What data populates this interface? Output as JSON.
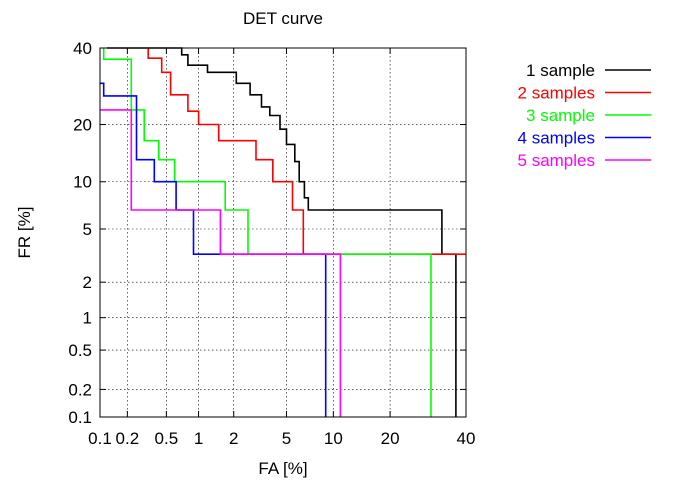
{
  "chart_data": {
    "type": "line",
    "title": "DET curve",
    "xlabel": "FA [%]",
    "ylabel": "FR [%]",
    "x_scale": "probit",
    "y_scale": "probit",
    "xlim": [
      0.1,
      40
    ],
    "ylim": [
      0.1,
      40
    ],
    "x_ticks": [
      0.1,
      0.2,
      0.5,
      1,
      2,
      5,
      10,
      20,
      40
    ],
    "x_tick_labels": [
      "0.1",
      "0.2",
      "0.5",
      "1",
      "2",
      "5",
      "10",
      "20",
      "40"
    ],
    "y_ticks": [
      0.1,
      0.2,
      0.5,
      1,
      2,
      5,
      10,
      20,
      40
    ],
    "y_tick_labels": [
      "0.1",
      "0.2",
      "0.5",
      "1",
      "2",
      "5",
      "10",
      "20",
      "40"
    ],
    "grid": true,
    "legend_position": "outside-right",
    "series": [
      {
        "name": "1 sample",
        "color": "#000000",
        "x": [
          0.12,
          0.7,
          0.7,
          0.8,
          0.8,
          1.2,
          1.2,
          2.1,
          2.1,
          2.7,
          2.7,
          3.3,
          3.3,
          3.8,
          3.8,
          4.5,
          4.5,
          5.0,
          5.0,
          5.7,
          5.7,
          6.1,
          6.1,
          6.6,
          6.6,
          7.0,
          7.0,
          33.0,
          33.0,
          37.0,
          37.0
        ],
        "y": [
          40,
          40,
          38,
          38,
          35,
          35,
          33,
          33,
          30,
          30,
          27,
          27,
          24,
          24,
          22,
          22,
          19,
          19,
          16,
          16,
          13,
          13,
          10,
          10,
          8,
          8,
          6.7,
          6.7,
          3.3,
          3.3,
          0.1
        ]
      },
      {
        "name": "2 samples",
        "color": "#ff0000",
        "x": [
          0.33,
          0.33,
          0.45,
          0.45,
          0.55,
          0.55,
          0.8,
          0.8,
          1.0,
          1.0,
          1.5,
          1.5,
          3.0,
          3.0,
          4.0,
          4.0,
          5.5,
          5.5,
          6.5,
          6.5,
          40
        ],
        "y": [
          40,
          37,
          37,
          33,
          33,
          27,
          27,
          23,
          23,
          20,
          20,
          16.7,
          16.7,
          13.3,
          13.3,
          10,
          10,
          6.7,
          6.7,
          3.3,
          3.3
        ]
      },
      {
        "name": "3 sample",
        "color": "#00ff00",
        "x": [
          0.11,
          0.11,
          0.22,
          0.22,
          0.3,
          0.3,
          0.42,
          0.42,
          0.6,
          0.6,
          1.7,
          1.7,
          2.6,
          2.6,
          7.0,
          7.0,
          30.0,
          30.0
        ],
        "y": [
          40,
          36.7,
          36.7,
          23.3,
          23.3,
          16.7,
          16.7,
          13.3,
          13.3,
          10,
          10,
          6.7,
          6.7,
          3.3,
          3.3,
          3.3,
          3.3,
          0.1
        ]
      },
      {
        "name": "4 samples",
        "color": "#0000ff",
        "x": [
          0.1,
          0.11,
          0.11,
          0.25,
          0.25,
          0.38,
          0.38,
          0.62,
          0.62,
          0.9,
          0.9,
          9.0,
          9.0
        ],
        "y": [
          30,
          30,
          26.7,
          26.7,
          13.3,
          13.3,
          10,
          10,
          6.7,
          6.7,
          3.3,
          3.3,
          0.1
        ]
      },
      {
        "name": "5 samples",
        "color": "#ff00ff",
        "x": [
          0.1,
          0.22,
          0.22,
          1.55,
          1.55,
          11.0,
          11.0
        ],
        "y": [
          23.3,
          23.3,
          6.7,
          6.7,
          3.3,
          3.3,
          0.1
        ]
      }
    ]
  }
}
